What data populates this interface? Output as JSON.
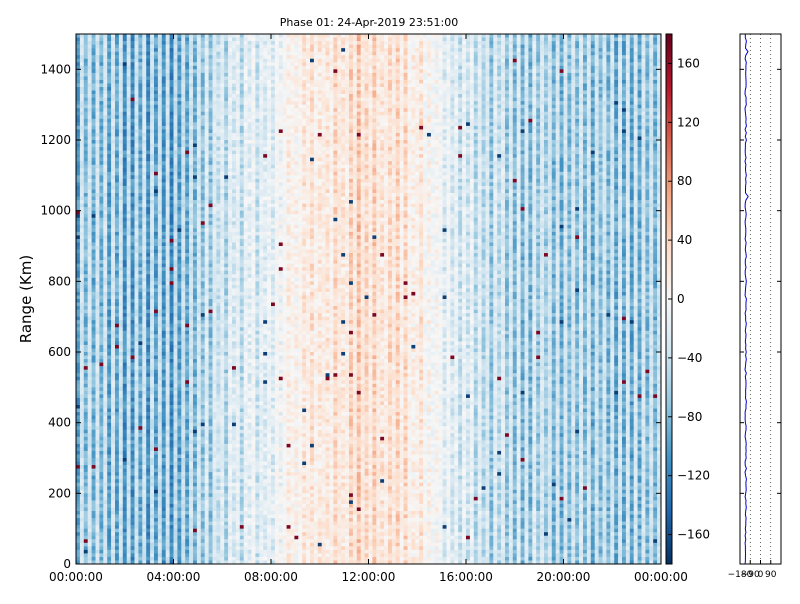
{
  "chart_data": [
    {
      "type": "heatmap",
      "title": "Phase 01: 24-Apr-2019 23:51:00",
      "ylabel": "Range (Km)",
      "xlabel": "",
      "x_range_hours": [
        0,
        24
      ],
      "ylim": [
        0,
        1500
      ],
      "x_ticks": [
        {
          "hour": 0,
          "label": "00:00:00"
        },
        {
          "hour": 4,
          "label": "04:00:00"
        },
        {
          "hour": 8,
          "label": "08:00:00"
        },
        {
          "hour": 12,
          "label": "12:00:00"
        },
        {
          "hour": 16,
          "label": "16:00:00"
        },
        {
          "hour": 20,
          "label": "20:00:00"
        },
        {
          "hour": 24,
          "label": "00:00:00"
        }
      ],
      "y_ticks": [
        {
          "value": 0,
          "label": "0"
        },
        {
          "value": 200,
          "label": "200"
        },
        {
          "value": 400,
          "label": "400"
        },
        {
          "value": 600,
          "label": "600"
        },
        {
          "value": 800,
          "label": "800"
        },
        {
          "value": 1000,
          "label": "1000"
        },
        {
          "value": 1200,
          "label": "1200"
        },
        {
          "value": 1400,
          "label": "1400"
        }
      ],
      "colorbar": {
        "colormap": "RdBu_r",
        "range": [
          -180,
          180
        ],
        "ticks": [
          {
            "value": 160,
            "label": "160"
          },
          {
            "value": 120,
            "label": "120"
          },
          {
            "value": 80,
            "label": "80"
          },
          {
            "value": 40,
            "label": "40"
          },
          {
            "value": 0,
            "label": "0"
          },
          {
            "value": -40,
            "label": "−40"
          },
          {
            "value": -80,
            "label": "−80"
          },
          {
            "value": -120,
            "label": "−120"
          },
          {
            "value": -160,
            "label": "−160"
          }
        ]
      },
      "approx_phase_by_hour": [
        {
          "hour": 0,
          "phase": -90
        },
        {
          "hour": 2,
          "phase": -100
        },
        {
          "hour": 4,
          "phase": -110
        },
        {
          "hour": 5,
          "phase": -80
        },
        {
          "hour": 6,
          "phase": -50
        },
        {
          "hour": 8,
          "phase": -20
        },
        {
          "hour": 9,
          "phase": 10
        },
        {
          "hour": 10,
          "phase": 30
        },
        {
          "hour": 12,
          "phase": 40
        },
        {
          "hour": 13,
          "phase": 35
        },
        {
          "hour": 14,
          "phase": 20
        },
        {
          "hour": 15,
          "phase": -20
        },
        {
          "hour": 16,
          "phase": -40
        },
        {
          "hour": 17,
          "phase": -60
        },
        {
          "hour": 18,
          "phase": -70
        },
        {
          "hour": 20,
          "phase": -80
        },
        {
          "hour": 24,
          "phase": -90
        }
      ]
    },
    {
      "type": "line",
      "x_ticks": [
        {
          "value": -180,
          "label": "−180"
        },
        {
          "value": -90,
          "label": "−90"
        },
        {
          "value": 0,
          "label": "0"
        },
        {
          "value": 90,
          "label": "90"
        }
      ],
      "xlim": [
        -180,
        180
      ],
      "ylim": [
        0,
        1500
      ],
      "y_tick_values": [
        0,
        200,
        400,
        600,
        800,
        1000,
        1200,
        1400
      ],
      "profile_phase_approx": -130,
      "colors": {
        "profile": "#0000cc"
      }
    }
  ]
}
